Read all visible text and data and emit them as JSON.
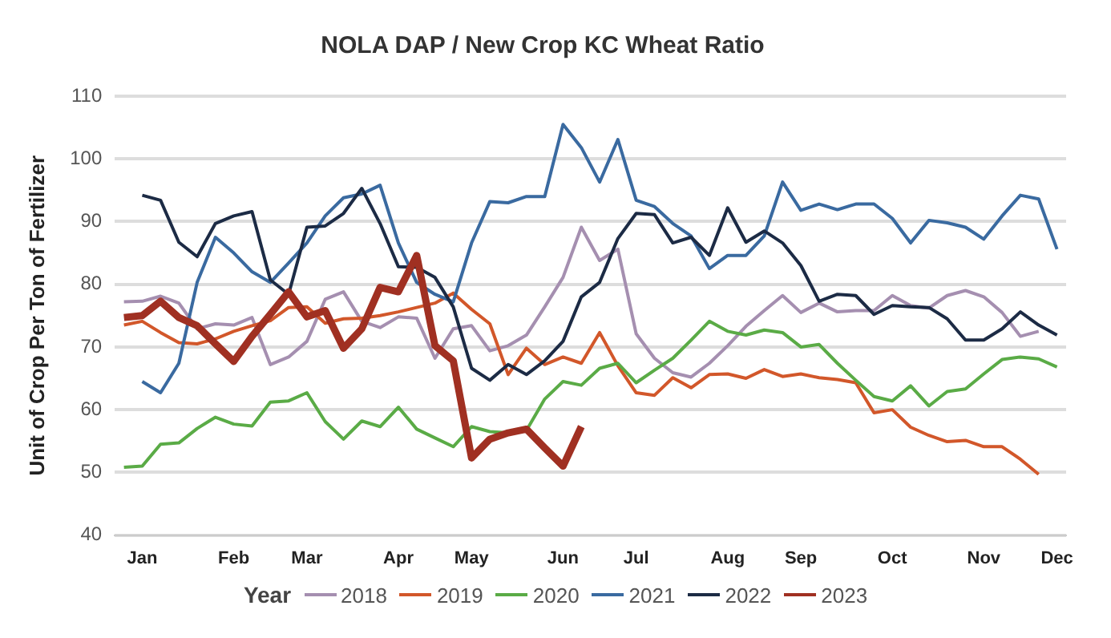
{
  "chart_data": {
    "type": "line",
    "title": "NOLA DAP / New Crop KC Wheat Ratio",
    "ylabel": "Unit of Crop Per Ton of Fertilizer",
    "legend_title": "Year",
    "categories": [
      null,
      "Jan",
      null,
      null,
      null,
      null,
      "Feb",
      null,
      null,
      null,
      "Mar",
      null,
      null,
      null,
      null,
      "Apr",
      null,
      null,
      null,
      "May",
      null,
      null,
      null,
      null,
      "Jun",
      null,
      null,
      null,
      "Jul",
      null,
      null,
      null,
      null,
      "Aug",
      null,
      null,
      null,
      "Sep",
      null,
      null,
      null,
      null,
      "Oct",
      null,
      null,
      null,
      null,
      "Nov",
      null,
      null,
      null,
      "Dec"
    ],
    "ylim": [
      40,
      110
    ],
    "yticks": [
      40,
      50,
      60,
      70,
      80,
      90,
      100,
      110
    ],
    "grid": "y",
    "legend": "bottom",
    "marker": "none",
    "series": [
      {
        "name": "2018",
        "color": "#a58fb0",
        "values": [
          77.2,
          77.3,
          78.1,
          77,
          72.9,
          73.7,
          73.5,
          74.7,
          67.2,
          68.4,
          70.9,
          77.6,
          78.8,
          74.1,
          73.1,
          74.8,
          74.6,
          68.2,
          72.9,
          73.4,
          69.4,
          70.2,
          71.9,
          76.4,
          81.1,
          89.1,
          83.8,
          85.6,
          72.1,
          68.2,
          65.9,
          65.2,
          67.4,
          70.2,
          73.3,
          75.8,
          78.2,
          75.5,
          77,
          75.6,
          75.8,
          75.8,
          78.2,
          76.6,
          76.2,
          78.2,
          79,
          78,
          75.5,
          71.7,
          72.5,
          null
        ]
      },
      {
        "name": "2019",
        "color": "#d2572a",
        "values": [
          73.5,
          74.1,
          72.3,
          70.7,
          70.5,
          71.3,
          72.5,
          73.4,
          74.2,
          76.3,
          76.4,
          73.8,
          74.5,
          74.6,
          75,
          75.6,
          76.3,
          77,
          78.6,
          76,
          73.7,
          65.6,
          69.8,
          67.2,
          68.4,
          67.4,
          72.3,
          67,
          62.7,
          62.3,
          65.1,
          63.5,
          65.6,
          65.7,
          65,
          66.4,
          65.3,
          65.7,
          65.1,
          64.8,
          64.3,
          59.5,
          60,
          57.2,
          55.9,
          54.9,
          55.1,
          54.1,
          54.1,
          52.1,
          49.7,
          null
        ]
      },
      {
        "name": "2020",
        "color": "#5aab46",
        "values": [
          50.8,
          51,
          54.5,
          54.7,
          57,
          58.8,
          57.7,
          57.4,
          61.2,
          61.4,
          62.7,
          58.1,
          55.3,
          58.2,
          57.3,
          60.4,
          56.9,
          55.5,
          54.1,
          57.3,
          56.5,
          56.3,
          56.7,
          61.7,
          64.5,
          63.9,
          66.6,
          67.4,
          64.3,
          66.3,
          68.2,
          71.1,
          74.1,
          72.5,
          71.9,
          72.7,
          72.3,
          70,
          70.4,
          67.4,
          64.7,
          62.1,
          61.4,
          63.8,
          60.6,
          62.9,
          63.3,
          65.7,
          68,
          68.4,
          68.1,
          66.8
        ]
      },
      {
        "name": "2021",
        "color": "#3a6aa0",
        "values": [
          null,
          64.5,
          62.7,
          67.4,
          80.3,
          87.5,
          85,
          82,
          80.3,
          83.4,
          86.6,
          90.9,
          93.8,
          94.4,
          95.8,
          86.6,
          80.3,
          78.4,
          77.2,
          86.6,
          93.2,
          93,
          94,
          94,
          105.5,
          101.8,
          96.3,
          103.1,
          93.4,
          92.4,
          89.7,
          87.7,
          82.5,
          84.6,
          84.6,
          87.7,
          96.3,
          91.8,
          92.8,
          91.9,
          92.8,
          92.8,
          90.5,
          86.6,
          90.2,
          89.8,
          89.1,
          87.2,
          90.9,
          94.2,
          93.6,
          85.6
        ]
      },
      {
        "name": "2022",
        "color": "#1c2b45",
        "values": [
          null,
          94.2,
          93.4,
          86.7,
          84.4,
          89.7,
          90.9,
          91.6,
          80.7,
          78.4,
          89.1,
          89.3,
          91.3,
          95.3,
          89.7,
          82.8,
          82.7,
          81.1,
          76.4,
          66.6,
          64.7,
          67.2,
          65.6,
          67.8,
          70.9,
          78,
          80.3,
          87.3,
          91.3,
          91.1,
          86.6,
          87.5,
          84.6,
          92.2,
          86.7,
          88.5,
          86.6,
          83,
          77.3,
          78.4,
          78.2,
          75.2,
          76.6,
          76.4,
          76.3,
          74.5,
          71.1,
          71.1,
          72.9,
          75.6,
          73.5,
          71.9
        ]
      },
      {
        "name": "2023",
        "color": "#a03022",
        "values": [
          74.7,
          75,
          77.3,
          74.7,
          73.4,
          70.5,
          67.7,
          71.7,
          75.2,
          78.8,
          74.8,
          75.8,
          69.8,
          72.9,
          79.5,
          78.8,
          84.6,
          70.2,
          67.8,
          52.3,
          55.3,
          56.3,
          56.9,
          53.9,
          51,
          57.3,
          null,
          null,
          null,
          null,
          null,
          null,
          null,
          null,
          null,
          null,
          null,
          null,
          null,
          null,
          null,
          null,
          null,
          null,
          null,
          null,
          null,
          null,
          null,
          null,
          null,
          null
        ]
      }
    ]
  }
}
